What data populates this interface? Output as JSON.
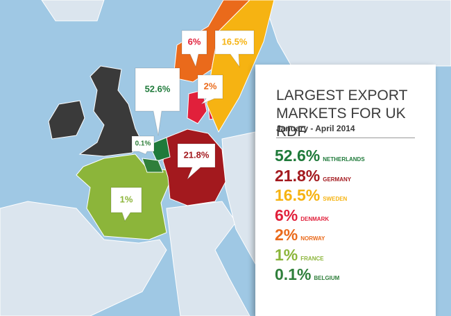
{
  "title": "LARGEST EXPORT MARKETS FOR UK RDF",
  "subtitle": "January - April 2014",
  "markets": [
    {
      "share": "52.6%",
      "country": "NETHERLANDS",
      "color": "#1f7a3a"
    },
    {
      "share": "21.8%",
      "country": "GERMANY",
      "color": "#a3191e"
    },
    {
      "share": "16.5%",
      "country": "SWEDEN",
      "color": "#f6b312"
    },
    {
      "share": "6%",
      "country": "DENMARK",
      "color": "#e1203b"
    },
    {
      "share": "2%",
      "country": "NORWAY",
      "color": "#ea6a1b"
    },
    {
      "share": "1%",
      "country": "FRANCE",
      "color": "#8cb53a"
    },
    {
      "share": "0.1%",
      "country": "BELGIUM",
      "color": "#2f7f3b"
    }
  ]
}
